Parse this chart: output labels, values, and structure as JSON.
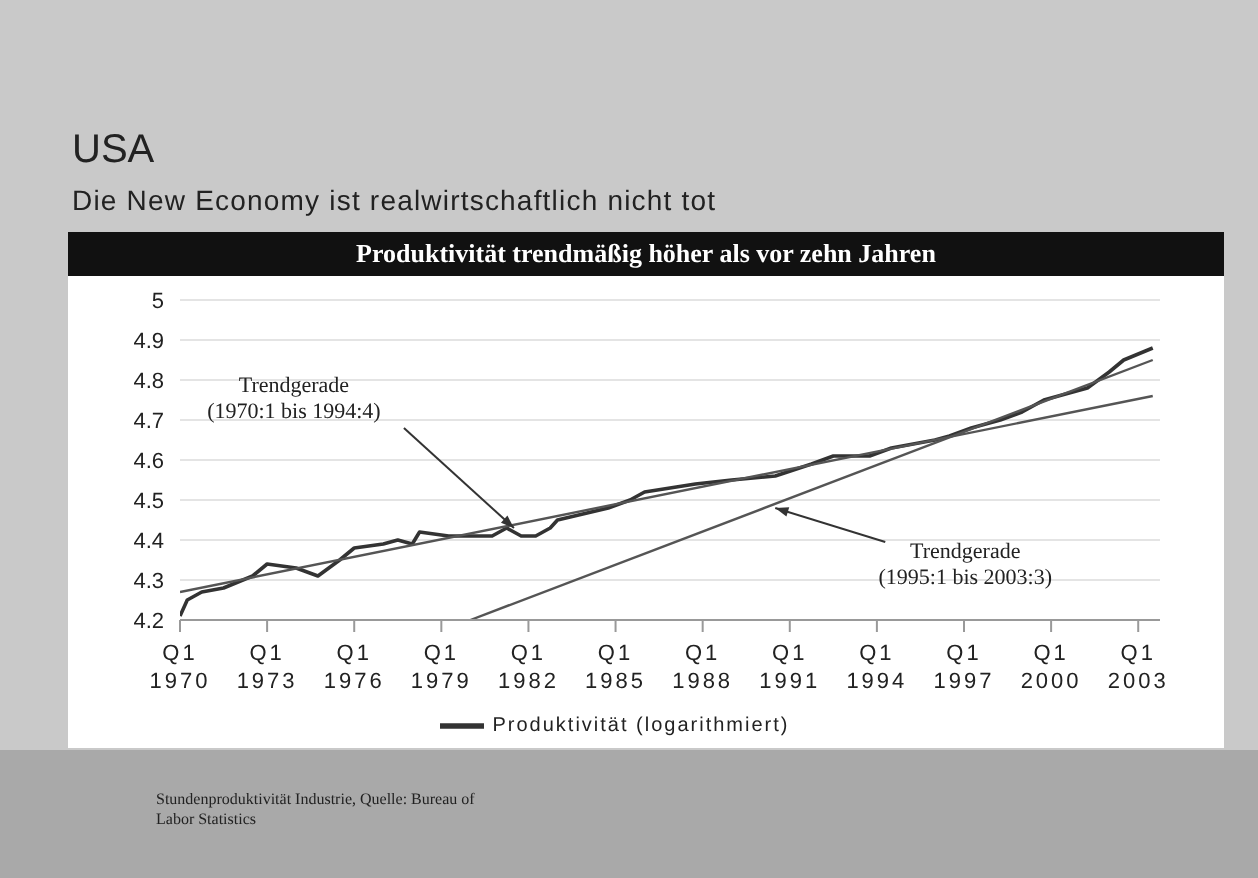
{
  "chart_data": {
    "type": "line",
    "title": "USA",
    "subtitle": "Die New Economy ist realwirtschaftlich nicht tot",
    "annotations": [
      "Produktivität trendmäßig höher als vor zehn Jahren",
      "Stundenproduktivität Industrie, Quelle: Bureau of Labor Statistics",
      {
        "text": "Trendgerade (1970:1 bis 1994:4)",
        "x": "1981-07",
        "y": 4.43
      },
      {
        "text": "Trendgerade (1995:1 bis 2003:3)",
        "x": "1990-07",
        "y": 4.48
      }
    ],
    "xlim": [
      "1970-01",
      "2003-10"
    ],
    "xticks": [
      {
        "value": "1970-01",
        "label": "Q1 1970"
      },
      {
        "value": "1973-01",
        "label": "Q1 1973"
      },
      {
        "value": "1976-01",
        "label": "Q1 1976"
      },
      {
        "value": "1979-01",
        "label": "Q1 1979"
      },
      {
        "value": "1982-01",
        "label": "Q1 1982"
      },
      {
        "value": "1985-01",
        "label": "Q1 1985"
      },
      {
        "value": "1988-01",
        "label": "Q1 1988"
      },
      {
        "value": "1991-01",
        "label": "Q1 1991"
      },
      {
        "value": "1994-01",
        "label": "Q1 1994"
      },
      {
        "value": "1997-01",
        "label": "Q1 1997"
      },
      {
        "value": "2000-01",
        "label": "Q1 2000"
      },
      {
        "value": "2003-01",
        "label": "Q1 2003"
      }
    ],
    "ylim": [
      4.2,
      5
    ],
    "yticks": [
      4.2,
      4.3,
      4.4,
      4.5,
      4.6,
      4.7,
      4.8,
      4.9,
      5
    ],
    "grid": "y",
    "legend": "bottom",
    "marker": "none",
    "line_style": "solid",
    "series": [
      {
        "name": "Produktivität (logarithmiert)",
        "color": "#333333",
        "x": [
          "1970-01",
          "1970-04",
          "1970-10",
          "1971-07",
          "1972-07",
          "1973-01",
          "1974-01",
          "1974-10",
          "1975-07",
          "1976-01",
          "1977-01",
          "1977-07",
          "1978-01",
          "1978-04",
          "1979-04",
          "1980-01",
          "1980-10",
          "1981-04",
          "1981-10",
          "1982-04",
          "1982-10",
          "1983-01",
          "1984-10",
          "1985-07",
          "1986-01",
          "1987-10",
          "1989-01",
          "1990-07",
          "1991-10",
          "1992-07",
          "1993-10",
          "1994-07",
          "1996-01",
          "1996-07",
          "1997-04",
          "1998-04",
          "1999-01",
          "1999-10",
          "2000-10",
          "2001-04",
          "2002-01",
          "2002-07",
          "2003-07"
        ],
        "values": [
          4.21,
          4.25,
          4.27,
          4.28,
          4.31,
          4.34,
          4.33,
          4.31,
          4.35,
          4.38,
          4.39,
          4.4,
          4.39,
          4.42,
          4.41,
          4.41,
          4.41,
          4.43,
          4.41,
          4.41,
          4.43,
          4.45,
          4.48,
          4.5,
          4.52,
          4.54,
          4.55,
          4.56,
          4.59,
          4.61,
          4.61,
          4.63,
          4.65,
          4.66,
          4.68,
          4.7,
          4.72,
          4.75,
          4.77,
          4.78,
          4.82,
          4.85,
          4.88
        ]
      },
      {
        "type": "line",
        "color": "#555555",
        "x": [
          "1970-01",
          "2003-07"
        ],
        "values": [
          4.27,
          4.76
        ]
      },
      {
        "type": "line",
        "color": "#555555",
        "x": [
          "1980-01",
          "2003-07"
        ],
        "values": [
          4.2,
          4.85
        ]
      }
    ]
  }
}
